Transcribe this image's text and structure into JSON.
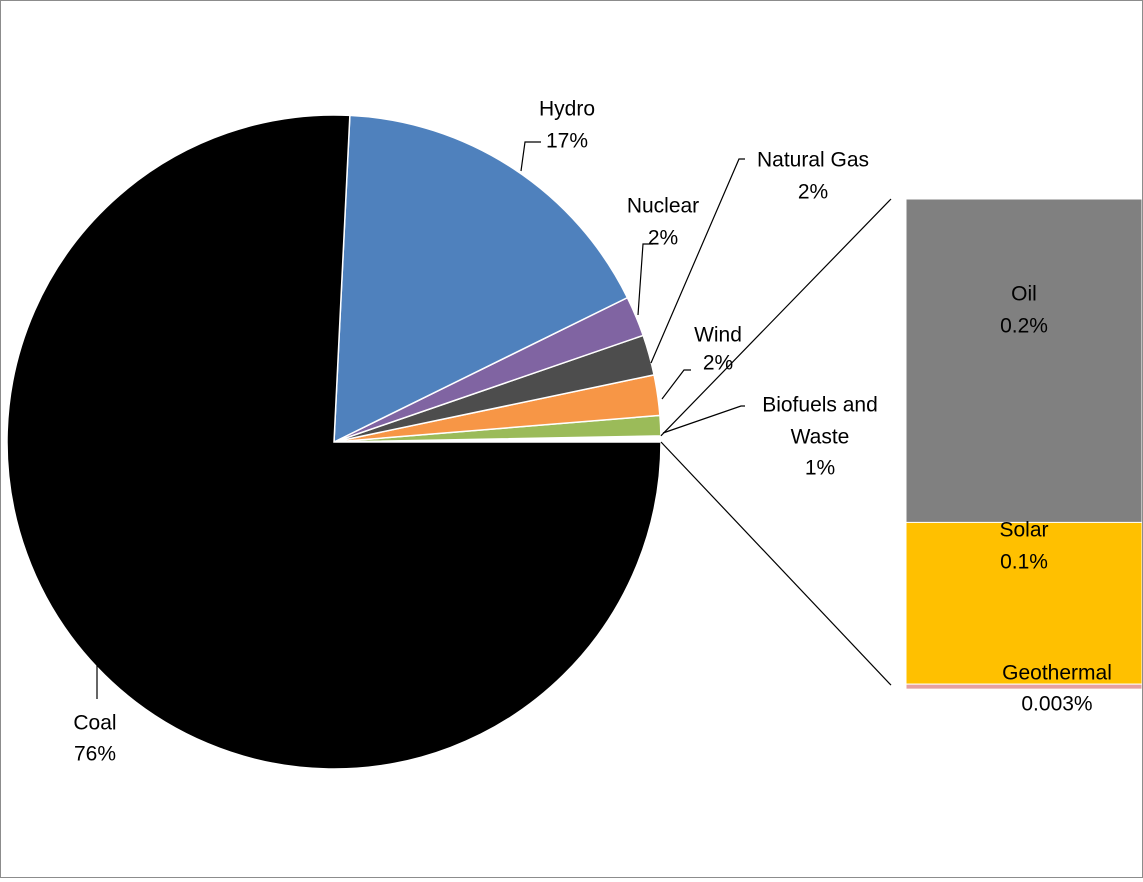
{
  "chart_data": {
    "type": "pie",
    "variant": "bar-of-pie",
    "title": "",
    "pie_slices": [
      {
        "name": "Coal",
        "value": 76,
        "label_value": "76%",
        "color": "#000000"
      },
      {
        "name": "Hydro",
        "value": 17,
        "label_value": "17%",
        "color": "#4f81bd"
      },
      {
        "name": "Nuclear",
        "value": 2,
        "label_value": "2%",
        "color": "#8064a2"
      },
      {
        "name": "Natural Gas",
        "value": 2,
        "label_value": "2%",
        "color": "#4d4d4d"
      },
      {
        "name": "Wind",
        "value": 2,
        "label_value": "2%",
        "color": "#f79646"
      },
      {
        "name": "Biofuels and Waste",
        "value": 1,
        "label_value": "1%",
        "color": "#9bbb59"
      }
    ],
    "bar_segments": [
      {
        "name": "Oil",
        "value": 0.2,
        "label_value": "0.2%",
        "color": "#808080"
      },
      {
        "name": "Solar",
        "value": 0.1,
        "label_value": "0.1%",
        "color": "#ffc000"
      },
      {
        "name": "Geothermal",
        "value": 0.003,
        "label_value": "0.003%",
        "color": "#e6a0a0"
      }
    ],
    "other_group_total": 0.3,
    "legend": "none"
  }
}
